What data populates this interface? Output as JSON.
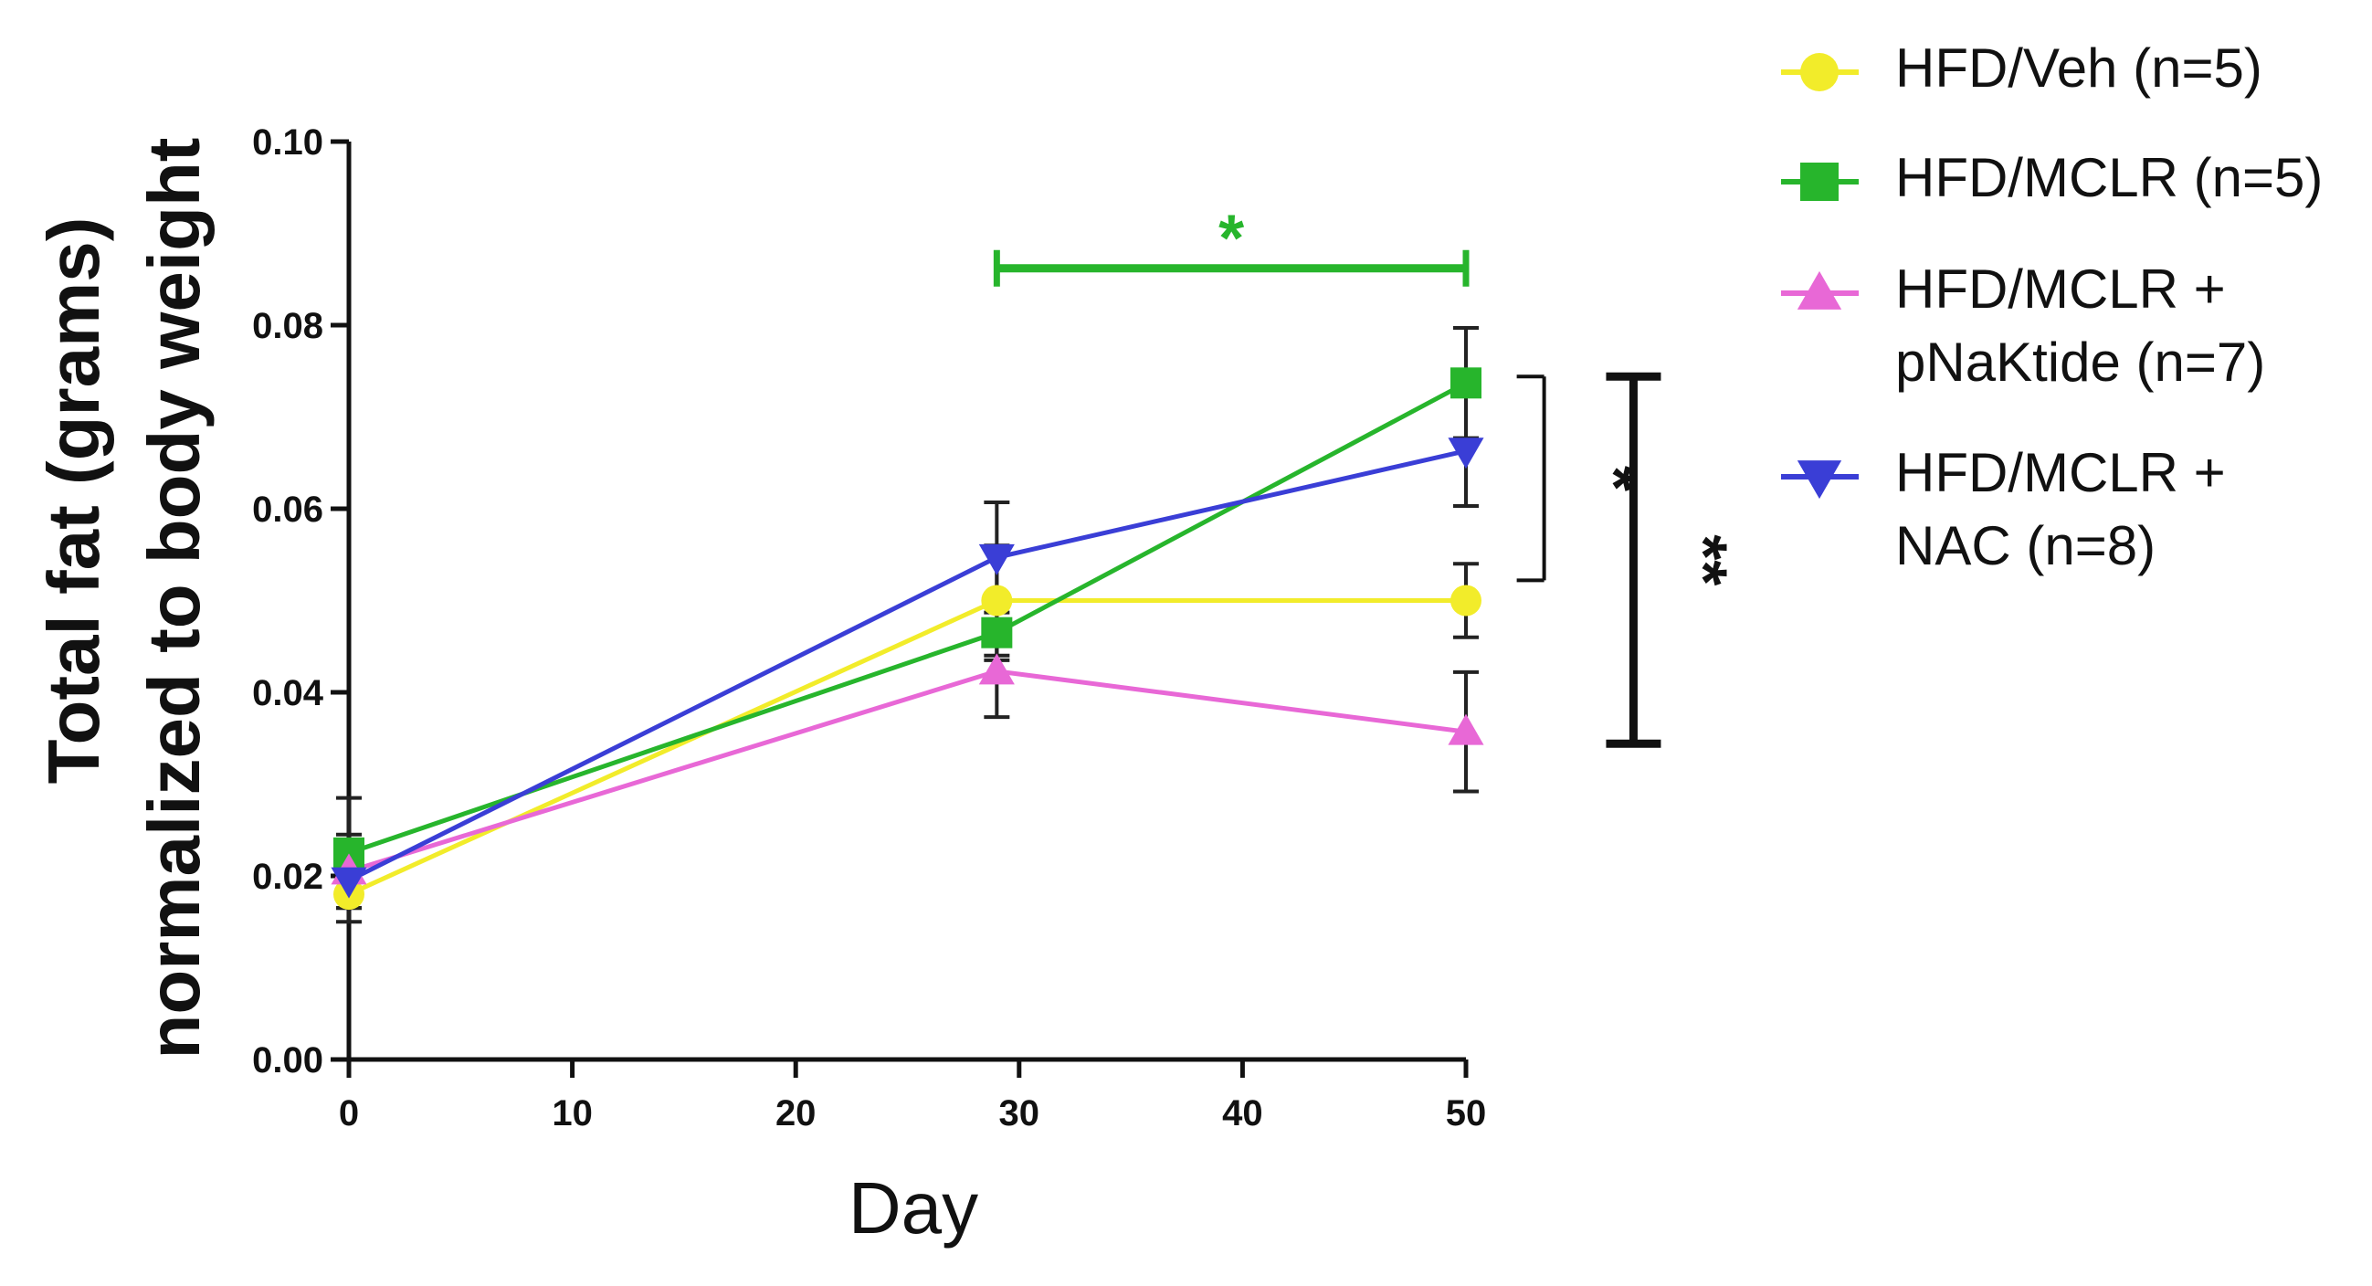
{
  "chart_data": {
    "type": "line",
    "title": "",
    "xlabel": "Day",
    "ylabel_line1": "Total fat (grams)",
    "ylabel_line2": "normalized to body weight",
    "xlim": [
      0,
      50
    ],
    "ylim": [
      0.0,
      0.1
    ],
    "xticks": [
      0,
      10,
      20,
      30,
      40,
      50
    ],
    "xtick_labels": [
      "0",
      "10",
      "20",
      "30",
      "40",
      "50"
    ],
    "yticks": [
      0.0,
      0.02,
      0.04,
      0.06,
      0.08,
      0.1
    ],
    "ytick_labels": [
      "0.00",
      "0.02",
      "0.04",
      "0.06",
      "0.08",
      "0.10"
    ],
    "grid": false,
    "legend_position": "right",
    "series": [
      {
        "name": "HFD/Veh (n=5)",
        "legend_lines": [
          "HFD/Veh (n=5)"
        ],
        "color": "#f2ec2a",
        "marker": "circle",
        "x": [
          0,
          29,
          50
        ],
        "y": [
          0.018,
          0.05,
          0.05
        ],
        "err": [
          0.003,
          0.006,
          0.004
        ]
      },
      {
        "name": "HFD/MCLR (n=5)",
        "legend_lines": [
          "HFD/MCLR (n=5)"
        ],
        "color": "#27b52c",
        "marker": "square",
        "x": [
          0,
          29,
          50
        ],
        "y": [
          0.0225,
          0.0465,
          0.0737
        ],
        "err": [
          0.006,
          0.003,
          0.006
        ]
      },
      {
        "name": "HFD/MCLR + pNaKtide (n=7)",
        "legend_lines": [
          "HFD/MCLR +",
          "pNaKtide (n=7)"
        ],
        "color": "#e868d6",
        "marker": "triangle-up",
        "x": [
          0,
          29,
          50
        ],
        "y": [
          0.0205,
          0.0423,
          0.0357
        ],
        "err": [
          0.004,
          0.005,
          0.0065
        ]
      },
      {
        "name": "HFD/MCLR + NAC (n=8)",
        "legend_lines": [
          "HFD/MCLR +",
          "NAC (n=8)"
        ],
        "color": "#3a3ed6",
        "marker": "triangle-down",
        "x": [
          0,
          29,
          50
        ],
        "y": [
          0.0195,
          0.0547,
          0.0663
        ],
        "err": [
          0.003,
          0.006,
          0.006
        ]
      }
    ],
    "annotations": [
      {
        "type": "hbracket",
        "label": "*",
        "color": "#27b52c",
        "x_from": 29,
        "x_to": 50,
        "y": 0.0862
      },
      {
        "type": "vbracket",
        "label": "*",
        "color": "#111111",
        "y_from": 0.0522,
        "y_to": 0.0744,
        "x": 53.5
      },
      {
        "type": "vbracket",
        "label": "**",
        "color": "#111111",
        "y_from": 0.0344,
        "y_to": 0.0744,
        "x": 57.5
      }
    ]
  }
}
